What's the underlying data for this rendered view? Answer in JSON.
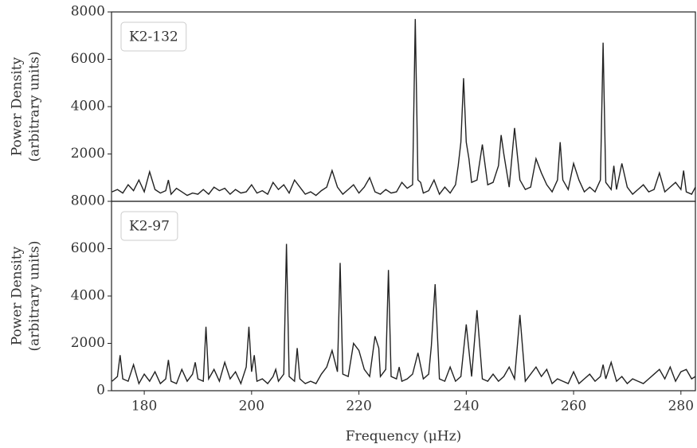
{
  "chart_data": [
    {
      "type": "line",
      "label": "K2-132",
      "ylabel": [
        "Power Density",
        "(arbitrary units)"
      ],
      "xlim": [
        173.9,
        282.7
      ],
      "ylim": [
        0,
        8000
      ],
      "yticks": [
        2000,
        4000,
        6000,
        8000
      ],
      "series": [
        {
          "color": "#222222",
          "x": [
            174,
            175,
            176,
            177,
            178,
            179,
            180,
            181,
            182,
            183,
            184,
            184.5,
            185,
            186,
            187,
            188,
            189,
            190,
            191,
            192,
            193,
            194,
            195,
            196,
            197,
            198,
            199,
            200,
            201,
            202,
            203,
            204,
            205,
            206,
            207,
            208,
            209,
            210,
            211,
            212,
            213,
            214,
            215,
            216,
            217,
            218,
            219,
            220,
            221,
            222,
            223,
            224,
            225,
            226,
            227,
            228,
            229,
            230,
            230.5,
            231,
            231.5,
            232,
            233,
            234,
            235,
            236,
            237,
            238,
            238.5,
            239,
            239.5,
            240,
            240.5,
            241,
            242,
            243,
            244,
            245,
            246,
            246.5,
            247,
            248,
            249,
            250,
            251,
            252,
            253,
            254,
            255,
            256,
            257,
            257.5,
            258,
            259,
            260,
            261,
            262,
            263,
            264,
            265,
            265.5,
            266,
            267,
            267.5,
            268,
            269,
            270,
            271,
            272,
            273,
            274,
            275,
            276,
            277,
            278,
            279,
            280,
            280.5,
            281,
            282,
            282.7
          ],
          "values": [
            400,
            500,
            350,
            700,
            450,
            900,
            400,
            1250,
            500,
            350,
            450,
            900,
            300,
            550,
            400,
            250,
            350,
            300,
            500,
            300,
            600,
            450,
            550,
            300,
            500,
            350,
            400,
            700,
            350,
            450,
            300,
            800,
            500,
            700,
            350,
            900,
            600,
            300,
            400,
            250,
            450,
            600,
            1300,
            600,
            300,
            500,
            700,
            350,
            600,
            1000,
            400,
            300,
            500,
            350,
            400,
            800,
            550,
            700,
            7700,
            900,
            800,
            350,
            450,
            900,
            300,
            600,
            350,
            700,
            1500,
            2500,
            5200,
            2500,
            1800,
            800,
            900,
            2400,
            700,
            800,
            1500,
            2800,
            2000,
            600,
            3100,
            900,
            500,
            600,
            1800,
            1200,
            700,
            400,
            900,
            2500,
            900,
            500,
            1600,
            900,
            400,
            600,
            400,
            900,
            6700,
            800,
            500,
            1500,
            500,
            1600,
            600,
            300,
            500,
            700,
            400,
            500,
            1200,
            400,
            600,
            800,
            500,
            1300,
            400,
            300,
            600
          ]
        }
      ]
    },
    {
      "type": "line",
      "label": "K2-97",
      "ylabel": [
        "Power Density",
        "(arbitrary units)"
      ],
      "xlabel": "Frequency (μHz)",
      "xlim": [
        173.9,
        282.7
      ],
      "ylim": [
        0,
        8000
      ],
      "yticks": [
        0,
        2000,
        4000,
        6000,
        8000
      ],
      "xticks": [
        180,
        200,
        220,
        240,
        260,
        280
      ],
      "series": [
        {
          "color": "#222222",
          "x": [
            174,
            175,
            175.5,
            176,
            177,
            178,
            179,
            180,
            181,
            182,
            183,
            184,
            184.5,
            185,
            186,
            187,
            188,
            189,
            189.5,
            190,
            191,
            191.5,
            192,
            193,
            194,
            195,
            196,
            197,
            198,
            199,
            199.5,
            200,
            200.5,
            201,
            202,
            203,
            204,
            204.5,
            205,
            206,
            206.5,
            207,
            208,
            208.5,
            209,
            210,
            211,
            212,
            213,
            214,
            215,
            216,
            216.5,
            217,
            218,
            219,
            220,
            221,
            222,
            223,
            223.7,
            224,
            225,
            225.5,
            226,
            227,
            227.5,
            228,
            229,
            230,
            231,
            232,
            233,
            233.5,
            234.2,
            235,
            236,
            237,
            238,
            239,
            240,
            241,
            242,
            243,
            244,
            245,
            246,
            247,
            248,
            249,
            250,
            251,
            252,
            253,
            254,
            255,
            256,
            257,
            258,
            259,
            260,
            261,
            262,
            263,
            264,
            265,
            265.5,
            266,
            267,
            268,
            269,
            270,
            271,
            272,
            273,
            274,
            275,
            276,
            277,
            278,
            279,
            280,
            281,
            282,
            282.7
          ],
          "values": [
            400,
            600,
            1500,
            500,
            400,
            1100,
            300,
            700,
            400,
            800,
            300,
            500,
            1300,
            400,
            300,
            900,
            400,
            700,
            1200,
            500,
            400,
            2700,
            500,
            900,
            400,
            1200,
            500,
            800,
            300,
            1000,
            2700,
            800,
            1500,
            400,
            500,
            300,
            600,
            900,
            400,
            700,
            6200,
            600,
            400,
            1800,
            500,
            300,
            400,
            300,
            700,
            1000,
            1700,
            800,
            5400,
            700,
            600,
            2000,
            1700,
            900,
            600,
            2300,
            1800,
            600,
            900,
            5100,
            600,
            500,
            1000,
            400,
            500,
            700,
            1600,
            500,
            700,
            1900,
            4500,
            500,
            400,
            1000,
            400,
            600,
            2800,
            600,
            3400,
            500,
            400,
            700,
            400,
            600,
            1000,
            500,
            3200,
            400,
            700,
            1000,
            600,
            900,
            300,
            500,
            400,
            300,
            800,
            300,
            500,
            700,
            400,
            600,
            1100,
            500,
            1200,
            400,
            600,
            300,
            500,
            400,
            300,
            500,
            700,
            900,
            500,
            1000,
            400,
            800,
            900,
            500,
            600
          ]
        }
      ]
    }
  ]
}
